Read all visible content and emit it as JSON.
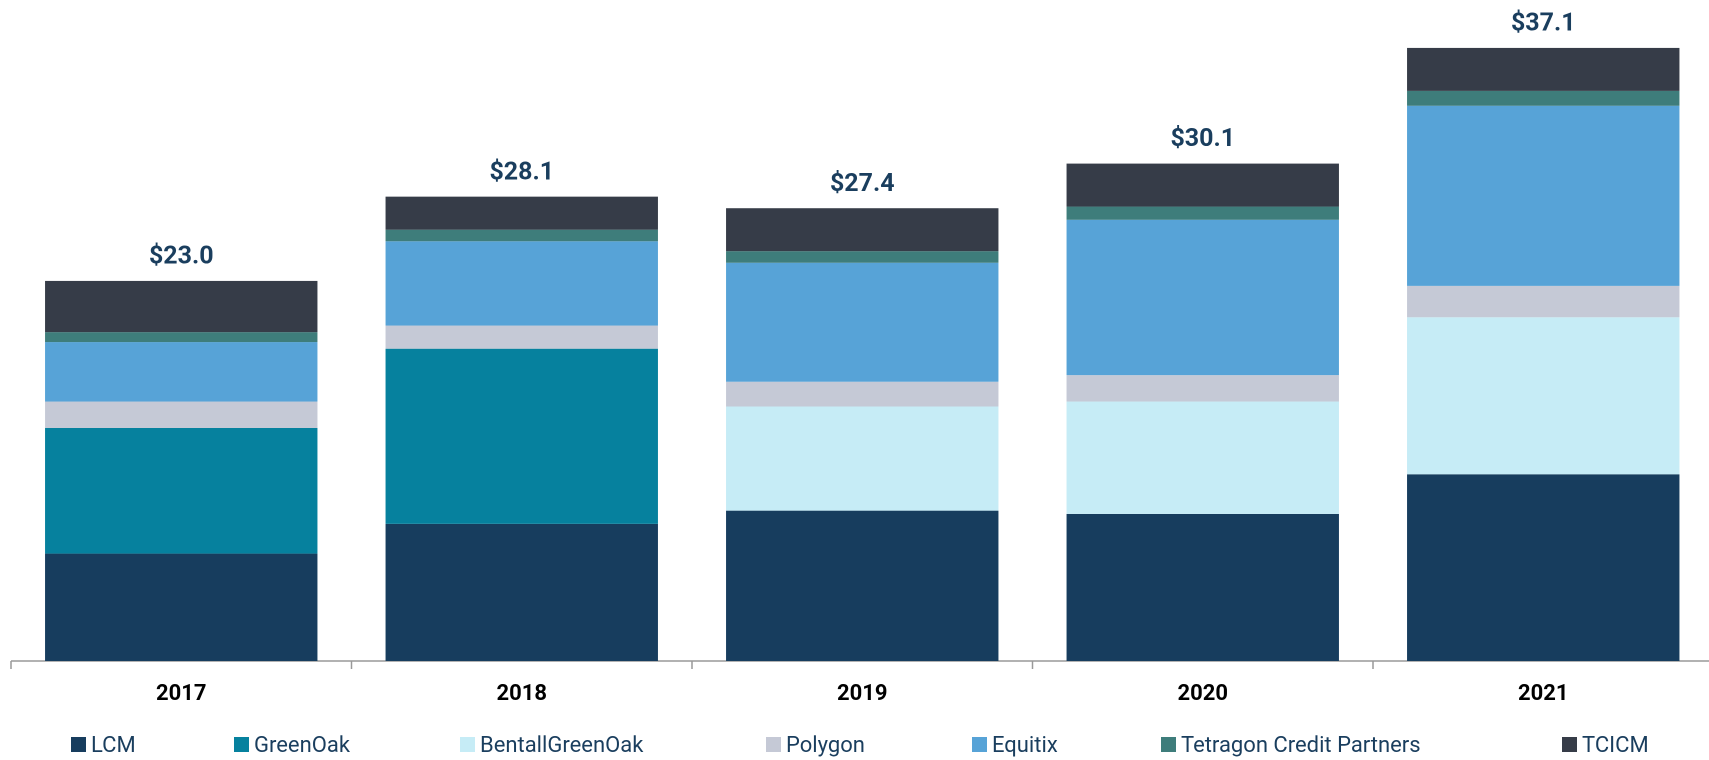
{
  "chart_data": {
    "type": "stacked_bar",
    "categories": [
      "2017",
      "2018",
      "2019",
      "2020",
      "2021"
    ],
    "series": [
      {
        "name": "LCM",
        "color": "#173d5e",
        "values": [
          6.5,
          8.3,
          9.1,
          8.9,
          11.3
        ]
      },
      {
        "name": "GreenOak",
        "color": "#06819e",
        "values": [
          7.6,
          10.6,
          null,
          null,
          null
        ]
      },
      {
        "name": "BentallGreenOak",
        "color": "#c6ecf6",
        "values": [
          null,
          null,
          6.3,
          6.8,
          9.5
        ]
      },
      {
        "name": "Polygon",
        "color": "#c5c9d6",
        "values": [
          1.6,
          1.4,
          1.5,
          1.6,
          1.9
        ]
      },
      {
        "name": "Equitix",
        "color": "#57a3d7",
        "values": [
          3.6,
          5.1,
          7.2,
          9.4,
          10.9
        ]
      },
      {
        "name": "Tetragon Credit Partners",
        "color": "#3e7d7b",
        "values": [
          0.6,
          0.7,
          0.7,
          0.8,
          0.9
        ]
      },
      {
        "name": "TCICM",
        "color": "#363c48",
        "values": [
          3.1,
          2.0,
          2.6,
          2.6,
          2.6
        ]
      }
    ],
    "totals": [
      23.0,
      28.1,
      27.4,
      30.1,
      37.1
    ],
    "total_labels": [
      "$23.0",
      "$28.1",
      "$27.4",
      "$30.1",
      "$37.1"
    ],
    "ylim": [
      0,
      40
    ]
  }
}
